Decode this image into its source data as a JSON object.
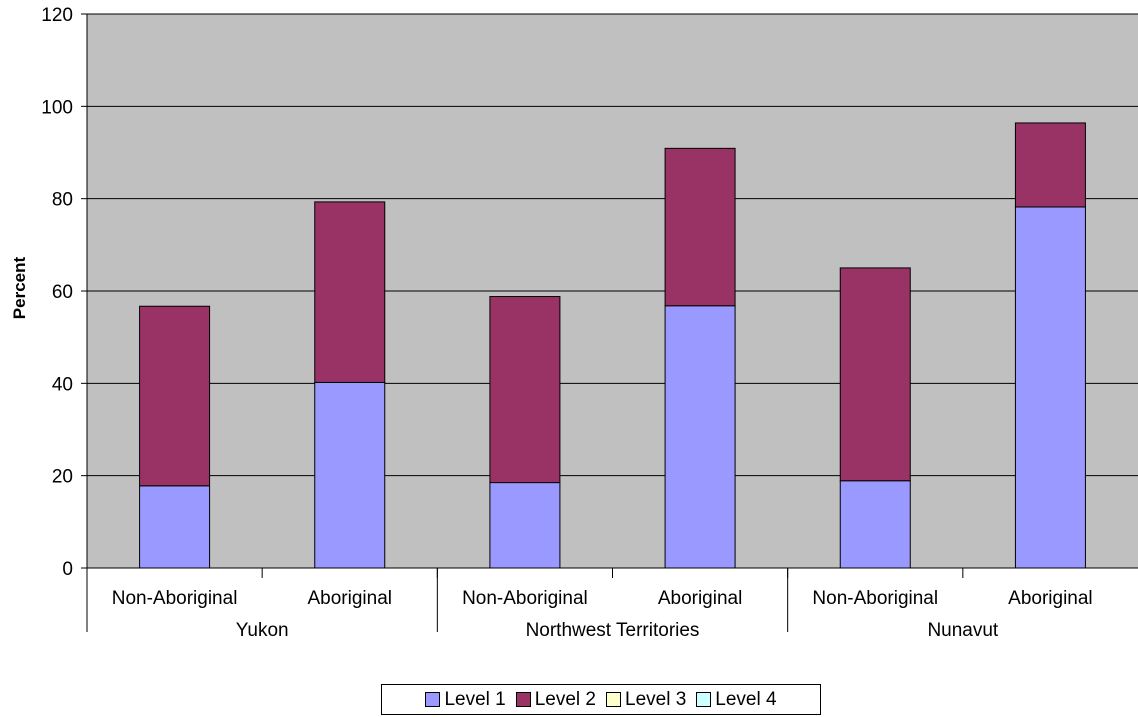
{
  "chart_data": {
    "type": "bar",
    "stacked": true,
    "ylabel": "Percent",
    "ylim": [
      0,
      120
    ],
    "yticks": [
      0,
      20,
      40,
      60,
      80,
      100,
      120
    ],
    "grid": true,
    "legend_position": "bottom",
    "categories": [
      "Non-Aboriginal",
      "Aboriginal",
      "Non-Aboriginal",
      "Aboriginal",
      "Non-Aboriginal",
      "Aboriginal"
    ],
    "groups": [
      {
        "name": "Yukon",
        "size": 2
      },
      {
        "name": "Northwest Territories",
        "size": 2
      },
      {
        "name": "Nunavut",
        "size": 2
      }
    ],
    "series": [
      {
        "name": "Level 1",
        "color": "#9999ff",
        "values": [
          17.8,
          40.2,
          18.5,
          56.8,
          18.9,
          78.2
        ]
      },
      {
        "name": "Level 2",
        "color": "#993366",
        "values": [
          38.9,
          39.1,
          40.3,
          34.1,
          46.1,
          18.2
        ]
      },
      {
        "name": "Level 3",
        "color": "#ffffcc",
        "values": [
          0,
          0,
          0,
          0,
          0,
          0
        ]
      },
      {
        "name": "Level 4",
        "color": "#ccffff",
        "values": [
          0,
          0,
          0,
          0,
          0,
          0
        ]
      }
    ],
    "plot_background": "#c0c0c0"
  }
}
